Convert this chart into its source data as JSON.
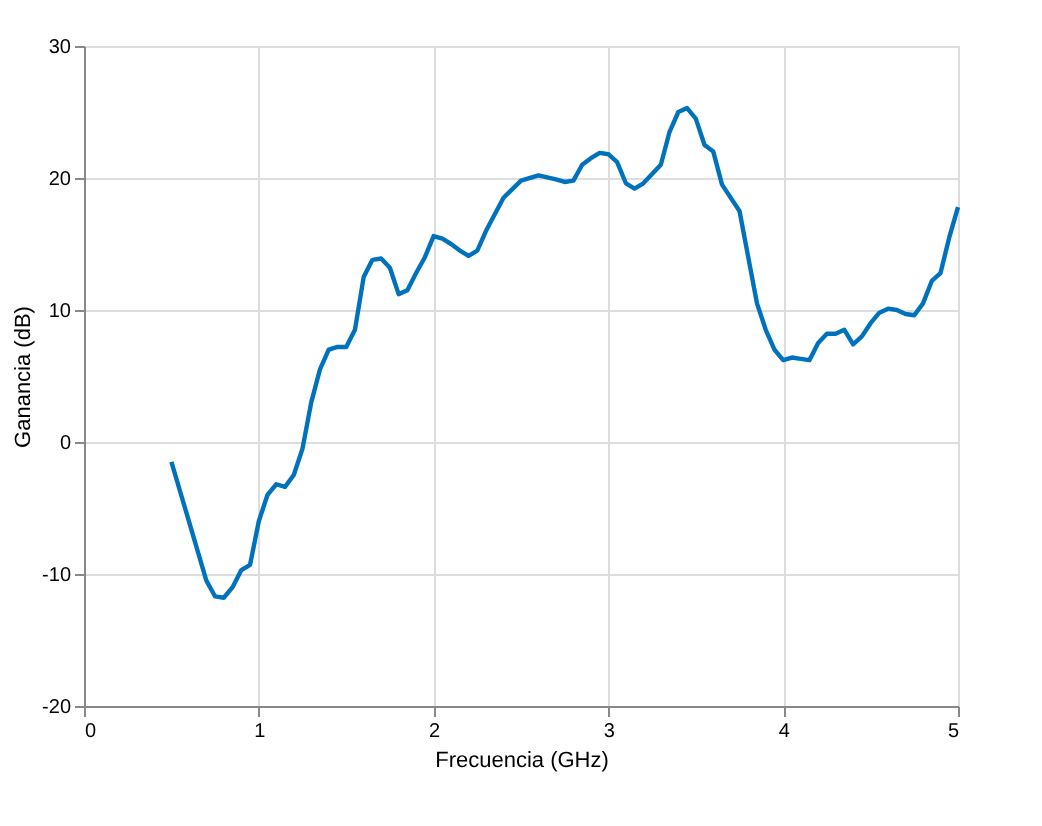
{
  "chart_data": {
    "type": "line",
    "xlabel": "Frecuencia (GHz)",
    "ylabel": "Ganancia (dB)",
    "x": [
      0.5,
      0.6,
      0.7,
      0.75,
      0.8,
      0.85,
      0.9,
      0.95,
      1.0,
      1.05,
      1.1,
      1.15,
      1.2,
      1.25,
      1.3,
      1.35,
      1.4,
      1.45,
      1.5,
      1.55,
      1.6,
      1.65,
      1.7,
      1.75,
      1.8,
      1.85,
      1.9,
      1.95,
      2.0,
      2.05,
      2.1,
      2.15,
      2.2,
      2.25,
      2.3,
      2.4,
      2.5,
      2.6,
      2.7,
      2.75,
      2.8,
      2.85,
      2.9,
      2.95,
      3.0,
      3.05,
      3.1,
      3.15,
      3.2,
      3.3,
      3.35,
      3.4,
      3.45,
      3.5,
      3.55,
      3.6,
      3.65,
      3.75,
      3.8,
      3.85,
      3.9,
      3.95,
      4.0,
      4.05,
      4.1,
      4.15,
      4.2,
      4.25,
      4.3,
      4.35,
      4.4,
      4.45,
      4.5,
      4.55,
      4.6,
      4.65,
      4.7,
      4.75,
      4.8,
      4.85,
      4.9,
      4.95,
      5.0
    ],
    "series": [
      {
        "color": "#0072bd",
        "values": [
          -1.5,
          -6,
          -10.5,
          -11.7,
          -11.8,
          -11,
          -9.7,
          -9.3,
          -6,
          -4,
          -3.2,
          -3.4,
          -2.5,
          -0.5,
          3,
          5.5,
          7,
          7.2,
          7.2,
          8.5,
          12.5,
          13.8,
          13.9,
          13.2,
          11.2,
          11.5,
          12.8,
          14,
          15.6,
          15.4,
          15,
          14.5,
          14.1,
          14.5,
          16,
          18.5,
          19.8,
          20.2,
          19.9,
          19.7,
          19.8,
          21,
          21.5,
          21.9,
          21.8,
          21.2,
          19.6,
          19.2,
          19.6,
          21,
          23.5,
          25,
          25.3,
          24.5,
          22.5,
          22,
          19.5,
          17.5,
          14,
          10.5,
          8.5,
          7,
          6.2,
          6.4,
          6.3,
          6.2,
          7.5,
          8.2,
          8.2,
          8.5,
          7.4,
          8,
          9,
          9.8,
          10.1,
          10,
          9.7,
          9.6,
          10.5,
          12.2,
          12.8,
          15.5,
          17.8
        ]
      }
    ],
    "xlim": [
      0,
      5
    ],
    "ylim": [
      -20,
      30
    ],
    "xticks": [
      0,
      1,
      2,
      3,
      4,
      5
    ],
    "yticks": [
      -20,
      -10,
      0,
      10,
      20,
      30
    ],
    "grid": true,
    "line_style": "solid"
  }
}
